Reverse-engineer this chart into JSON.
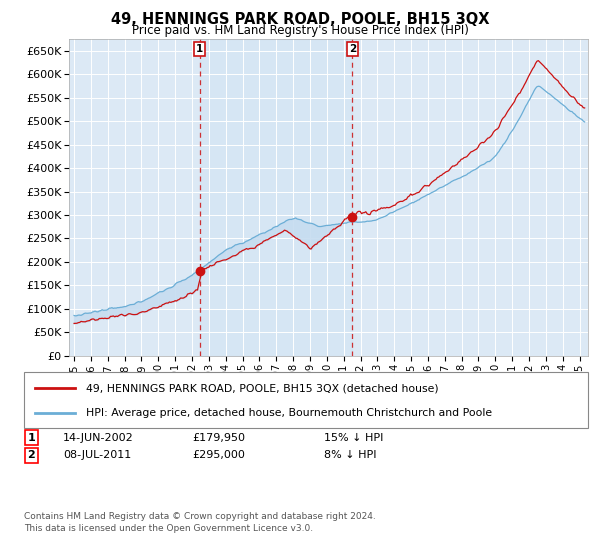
{
  "title": "49, HENNINGS PARK ROAD, POOLE, BH15 3QX",
  "subtitle": "Price paid vs. HM Land Registry's House Price Index (HPI)",
  "ylabel_ticks": [
    "£0",
    "£50K",
    "£100K",
    "£150K",
    "£200K",
    "£250K",
    "£300K",
    "£350K",
    "£400K",
    "£450K",
    "£500K",
    "£550K",
    "£600K",
    "£650K"
  ],
  "ytick_values": [
    0,
    50000,
    100000,
    150000,
    200000,
    250000,
    300000,
    350000,
    400000,
    450000,
    500000,
    550000,
    600000,
    650000
  ],
  "ylim": [
    0,
    675000
  ],
  "xlim_start": 1994.7,
  "xlim_end": 2025.5,
  "hpi_color": "#6baed6",
  "price_color": "#cc1111",
  "fill_color": "#c6dcf0",
  "marker1_date": 2002.45,
  "marker1_price": 179950,
  "marker2_date": 2011.52,
  "marker2_price": 295000,
  "legend_line1": "49, HENNINGS PARK ROAD, POOLE, BH15 3QX (detached house)",
  "legend_line2": "HPI: Average price, detached house, Bournemouth Christchurch and Poole",
  "sale1_date": "14-JUN-2002",
  "sale1_price": "£179,950",
  "sale1_pct": "15% ↓ HPI",
  "sale2_date": "08-JUL-2011",
  "sale2_price": "£295,000",
  "sale2_pct": "8% ↓ HPI",
  "footer": "Contains HM Land Registry data © Crown copyright and database right 2024.\nThis data is licensed under the Open Government Licence v3.0.",
  "plot_bg": "#dce9f5",
  "grid_color": "#ffffff"
}
